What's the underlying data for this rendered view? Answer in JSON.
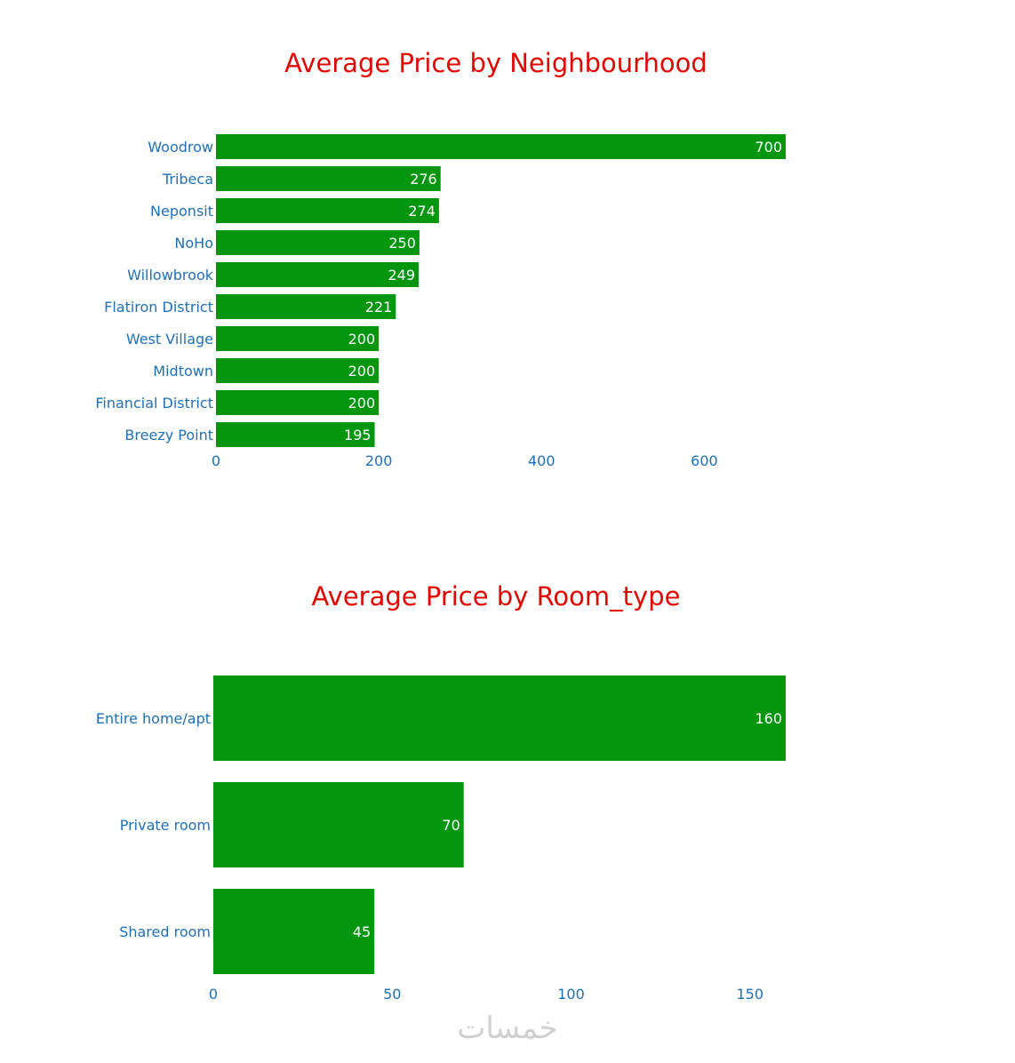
{
  "colors": {
    "bar": "#05960f",
    "title": "#e10600",
    "axis_text": "#1f6fb5",
    "value_text": "#ffffff"
  },
  "chart_data": [
    {
      "type": "bar",
      "orientation": "horizontal",
      "title": "Average Price by Neighbourhood",
      "xlabel": "",
      "ylabel": "",
      "categories": [
        "Woodrow",
        "Tribeca",
        "Neponsit",
        "NoHo",
        "Willowbrook",
        "Flatiron District",
        "West Village",
        "Midtown",
        "Financial District",
        "Breezy Point"
      ],
      "values": [
        700,
        276,
        274,
        250,
        249,
        221,
        200,
        200,
        200,
        195
      ],
      "xlim": [
        0,
        700
      ],
      "xticks": [
        0,
        200,
        400,
        600
      ],
      "grid": false
    },
    {
      "type": "bar",
      "orientation": "horizontal",
      "title": "Average Price by Room_type",
      "xlabel": "",
      "ylabel": "",
      "categories": [
        "Entire home/apt",
        "Private room",
        "Shared room"
      ],
      "values": [
        160,
        70,
        45
      ],
      "xlim": [
        0,
        160
      ],
      "xticks": [
        0,
        50,
        100,
        150
      ],
      "grid": false
    }
  ],
  "watermark": "خمسات"
}
